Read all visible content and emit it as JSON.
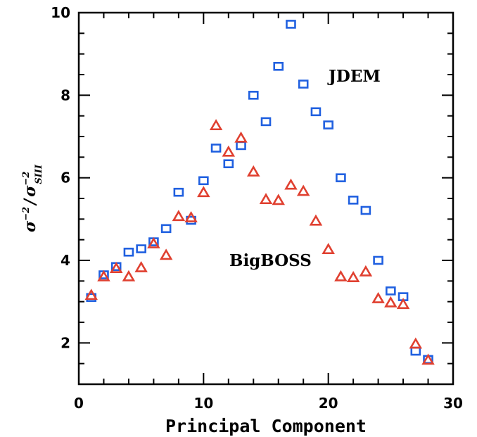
{
  "chart_data": {
    "type": "scatter",
    "xlabel": "Principal Component",
    "ylabel": {
      "num_base": "σ",
      "num_exp": "−2",
      "sep": "/",
      "den_base": "σ",
      "den_exp": "−2",
      "den_sub": "SIII"
    },
    "xlim": [
      0,
      30
    ],
    "ylim": [
      1,
      10
    ],
    "xticks": [
      "0",
      "10",
      "20",
      "30"
    ],
    "yticks": [
      "2",
      "4",
      "6",
      "8",
      "10"
    ],
    "grid": false,
    "annotations": [
      "JDEM",
      "BigBOSS"
    ],
    "series": [
      {
        "name": "JDEM",
        "marker": "square",
        "color": "#2060e0",
        "x": [
          1,
          2,
          3,
          4,
          5,
          6,
          7,
          8,
          9,
          10,
          11,
          12,
          13,
          14,
          15,
          16,
          17,
          18,
          19,
          20,
          21,
          22,
          23,
          24,
          25,
          26,
          27,
          28
        ],
        "y": [
          3.1,
          3.65,
          3.85,
          4.2,
          4.28,
          4.45,
          4.77,
          5.65,
          4.97,
          5.93,
          6.72,
          6.34,
          6.78,
          8.0,
          7.36,
          8.7,
          9.72,
          8.27,
          7.6,
          7.28,
          6.0,
          5.46,
          5.21,
          4.0,
          3.26,
          3.12,
          1.8,
          1.6
        ]
      },
      {
        "name": "BigBOSS",
        "marker": "triangle",
        "color": "#e04030",
        "x": [
          1,
          2,
          3,
          4,
          5,
          6,
          7,
          8,
          9,
          10,
          11,
          12,
          13,
          14,
          15,
          16,
          17,
          18,
          19,
          20,
          21,
          22,
          23,
          24,
          25,
          26,
          27,
          28
        ],
        "y": [
          3.15,
          3.6,
          3.8,
          3.6,
          3.82,
          4.4,
          4.12,
          5.06,
          5.03,
          5.64,
          7.26,
          6.62,
          6.96,
          6.14,
          5.47,
          5.45,
          5.82,
          5.67,
          4.95,
          4.26,
          3.6,
          3.58,
          3.72,
          3.07,
          2.97,
          2.93,
          1.97,
          1.58
        ]
      }
    ]
  }
}
